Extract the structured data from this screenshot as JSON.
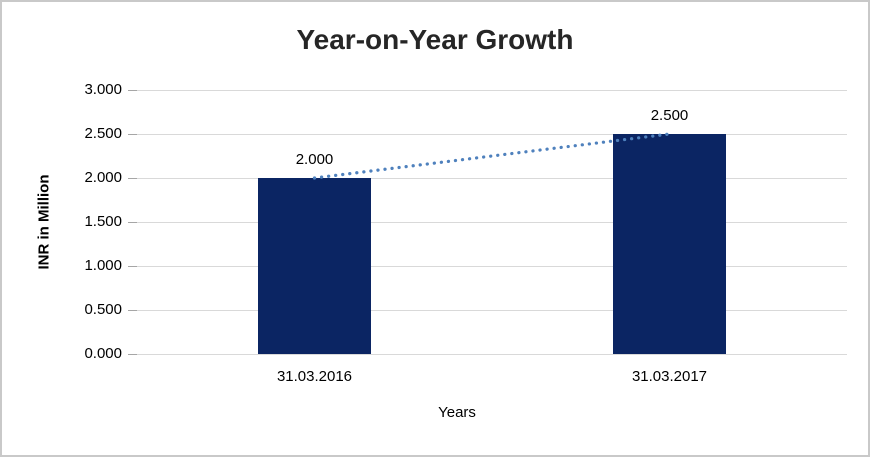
{
  "chart": {
    "title": "Year-on-Year Growth",
    "colors": {
      "bar": "#0B2563",
      "trendline": "#4F81BD",
      "gridline": "#D9D9D9",
      "tick": "#A6A6A6",
      "text": "#000000",
      "title_text": "#262626",
      "frame_border": "#C9C9C9",
      "background": "#FFFFFF"
    }
  },
  "chart_data": {
    "type": "bar",
    "title": "Year-on-Year Growth",
    "xlabel": "Years",
    "ylabel": "INR in Million",
    "categories": [
      "31.03.2016",
      "31.03.2017"
    ],
    "values": [
      2.0,
      2.5
    ],
    "data_labels": [
      "2.000",
      "2.500"
    ],
    "ylim": [
      0,
      3
    ],
    "ytick_step": 0.5,
    "ytick_labels": [
      "0.000",
      "0.500",
      "1.000",
      "1.500",
      "2.000",
      "2.500",
      "3.000"
    ],
    "grid": true,
    "legend": "none",
    "trendline": {
      "type": "linear",
      "style": "dotted",
      "points": [
        2.0,
        2.5
      ]
    }
  }
}
